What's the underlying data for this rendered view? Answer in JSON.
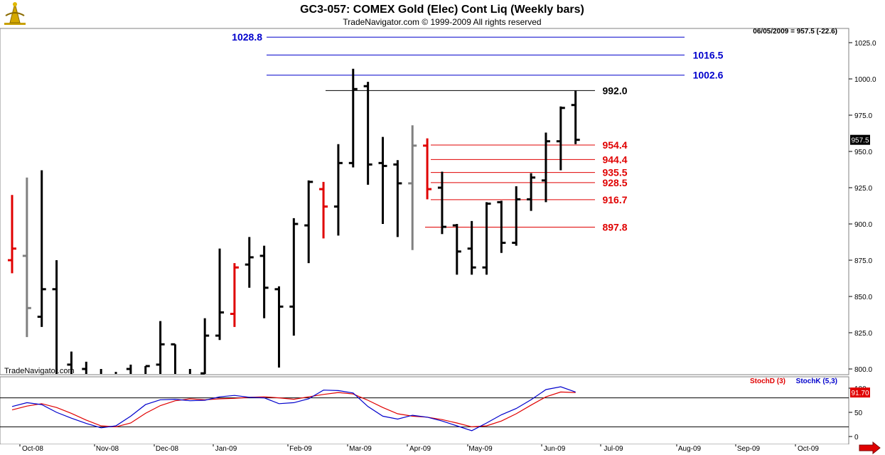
{
  "header": {
    "title": "GC3-057:  COMEX Gold (Elec) Cont Liq  (Weekly bars)",
    "subtitle": "TradeNavigator.com © 1999-2009 All rights reserved",
    "last_info": "06/05/2009 = 957.5 (-22.6)",
    "watermark": "TradeNavigator.com"
  },
  "colors": {
    "up_bar": "#000000",
    "down_bar": "#000000",
    "red_bar": "#e00000",
    "gray_bar": "#808080",
    "blue_level": "#0000cc",
    "red_level": "#e00000",
    "black_level": "#000000",
    "stoch_d": "#e00000",
    "stoch_k": "#0000cc"
  },
  "chart_data": [
    {
      "type": "ohlc",
      "title": "GC3-057:  COMEX Gold (Elec) Cont Liq  (Weekly bars)",
      "y_range": [
        797,
        1040
      ],
      "y_ticks": [
        "1025.0",
        "1000.0",
        "975.0",
        "950.0",
        "925.0",
        "900.0",
        "875.0",
        "850.0",
        "825.0",
        "800.0"
      ],
      "y_tick_values": [
        1025,
        1000,
        975,
        950,
        925,
        900,
        875,
        850,
        825,
        800
      ],
      "x_labels": [
        "Oct-08",
        "Nov-08",
        "Dec-08",
        "Jan-09",
        "Feb-09",
        "Mar-09",
        "Apr-09",
        "May-09",
        "Jun-09",
        "Jul-09",
        "Aug-09",
        "Sep-09",
        "Oct-09"
      ],
      "last_price_label": "957.5",
      "bars": [
        {
          "o": 875,
          "h": 920,
          "l": 866,
          "c": 883,
          "color": "red"
        },
        {
          "o": 878,
          "h": 932,
          "l": 822,
          "c": 842,
          "color": "gray"
        },
        {
          "o": 836,
          "h": 937,
          "l": 829,
          "c": 855,
          "color": "black"
        },
        {
          "o": 855,
          "h": 875,
          "l": 780,
          "c": 780,
          "color": "black"
        },
        {
          "o": 803,
          "h": 812,
          "l": 780,
          "c": 795,
          "color": "black"
        },
        {
          "o": 800,
          "h": 805,
          "l": 780,
          "c": 790,
          "color": "black"
        },
        {
          "o": 790,
          "h": 800,
          "l": 780,
          "c": 795,
          "color": "black"
        },
        {
          "o": 790,
          "h": 798,
          "l": 780,
          "c": 792,
          "color": "black"
        },
        {
          "o": 800,
          "h": 803,
          "l": 780,
          "c": 796,
          "color": "black"
        },
        {
          "o": 794,
          "h": 802,
          "l": 780,
          "c": 802,
          "color": "black"
        },
        {
          "o": 803,
          "h": 833,
          "l": 780,
          "c": 817,
          "color": "black"
        },
        {
          "o": 817,
          "h": 817,
          "l": 780,
          "c": 790,
          "color": "black"
        },
        {
          "o": 790,
          "h": 800,
          "l": 780,
          "c": 796,
          "color": "black"
        },
        {
          "o": 797,
          "h": 835,
          "l": 780,
          "c": 823,
          "color": "black"
        },
        {
          "o": 823,
          "h": 883,
          "l": 820,
          "c": 839,
          "color": "black"
        },
        {
          "o": 838,
          "h": 873,
          "l": 829,
          "c": 870,
          "color": "red"
        },
        {
          "o": 872,
          "h": 891,
          "l": 856,
          "c": 877,
          "color": "black"
        },
        {
          "o": 878,
          "h": 885,
          "l": 835,
          "c": 856,
          "color": "black"
        },
        {
          "o": 855,
          "h": 857,
          "l": 801,
          "c": 843,
          "color": "black"
        },
        {
          "o": 843,
          "h": 904,
          "l": 823,
          "c": 900,
          "color": "black"
        },
        {
          "o": 899,
          "h": 930,
          "l": 873,
          "c": 929,
          "color": "black"
        },
        {
          "o": 924,
          "h": 929,
          "l": 890,
          "c": 912,
          "color": "red"
        },
        {
          "o": 912,
          "h": 955,
          "l": 892,
          "c": 942,
          "color": "black"
        },
        {
          "o": 942,
          "h": 1007,
          "l": 939,
          "c": 993,
          "color": "black"
        },
        {
          "o": 995,
          "h": 998,
          "l": 927,
          "c": 941,
          "color": "black"
        },
        {
          "o": 942,
          "h": 960,
          "l": 900,
          "c": 940,
          "color": "black"
        },
        {
          "o": 941,
          "h": 944,
          "l": 891,
          "c": 928,
          "color": "black"
        },
        {
          "o": 928,
          "h": 968,
          "l": 882,
          "c": 954,
          "color": "gray"
        },
        {
          "o": 954,
          "h": 959,
          "l": 917,
          "c": 924,
          "color": "red"
        },
        {
          "o": 925,
          "h": 936,
          "l": 893,
          "c": 898,
          "color": "black"
        },
        {
          "o": 899,
          "h": 900,
          "l": 865,
          "c": 881,
          "color": "black"
        },
        {
          "o": 883,
          "h": 902,
          "l": 865,
          "c": 870,
          "color": "black"
        },
        {
          "o": 870,
          "h": 915,
          "l": 865,
          "c": 914,
          "color": "black"
        },
        {
          "o": 915,
          "h": 916,
          "l": 880,
          "c": 887,
          "color": "black"
        },
        {
          "o": 887,
          "h": 926,
          "l": 885,
          "c": 917,
          "color": "black"
        },
        {
          "o": 917,
          "h": 935,
          "l": 909,
          "c": 932,
          "color": "black"
        },
        {
          "o": 930,
          "h": 963,
          "l": 915,
          "c": 957,
          "color": "black"
        },
        {
          "o": 957,
          "h": 981,
          "l": 937,
          "c": 980,
          "color": "black"
        },
        {
          "o": 982,
          "h": 992,
          "l": 955,
          "c": 958,
          "color": "black"
        }
      ],
      "levels": [
        {
          "value": 1028.8,
          "label": "1028.8",
          "color": "blue",
          "label_side": "left"
        },
        {
          "value": 1016.5,
          "label": "1016.5",
          "color": "blue",
          "label_side": "right"
        },
        {
          "value": 1002.6,
          "label": "1002.6",
          "color": "blue",
          "label_side": "right"
        },
        {
          "value": 992.0,
          "label": "992.0",
          "color": "black",
          "label_side": "right"
        },
        {
          "value": 954.4,
          "label": "954.4",
          "color": "red",
          "label_side": "right"
        },
        {
          "value": 944.4,
          "label": "944.4",
          "color": "red",
          "label_side": "right"
        },
        {
          "value": 935.5,
          "label": "935.5",
          "color": "red",
          "label_side": "right"
        },
        {
          "value": 928.5,
          "label": "928.5",
          "color": "red",
          "label_side": "right"
        },
        {
          "value": 916.7,
          "label": "916.7",
          "color": "red",
          "label_side": "right"
        },
        {
          "value": 897.8,
          "label": "897.8",
          "color": "red",
          "label_side": "right"
        }
      ]
    },
    {
      "type": "line",
      "title": "",
      "y_range": [
        -5,
        110
      ],
      "y_ticks": [
        "100",
        "50",
        "0"
      ],
      "y_tick_values": [
        100,
        50,
        0
      ],
      "reference_lines": [
        80,
        20
      ],
      "last_value_label": "91.70",
      "series": [
        {
          "name": "StochD (3)",
          "color": "red",
          "values": [
            55,
            63,
            68,
            60,
            48,
            34,
            22,
            20,
            28,
            48,
            64,
            74,
            78,
            76,
            78,
            79,
            81,
            82,
            80,
            77,
            82,
            87,
            91,
            88,
            75,
            60,
            47,
            42,
            40,
            35,
            28,
            20,
            22,
            32,
            47,
            65,
            82,
            92,
            91
          ]
        },
        {
          "name": "StochK (5,3)",
          "color": "blue",
          "values": [
            62,
            70,
            66,
            50,
            38,
            27,
            18,
            22,
            42,
            66,
            76,
            77,
            74,
            75,
            82,
            85,
            81,
            80,
            68,
            70,
            78,
            96,
            95,
            90,
            62,
            42,
            36,
            44,
            40,
            32,
            22,
            12,
            28,
            45,
            58,
            76,
            97,
            103,
            92
          ]
        }
      ]
    }
  ]
}
